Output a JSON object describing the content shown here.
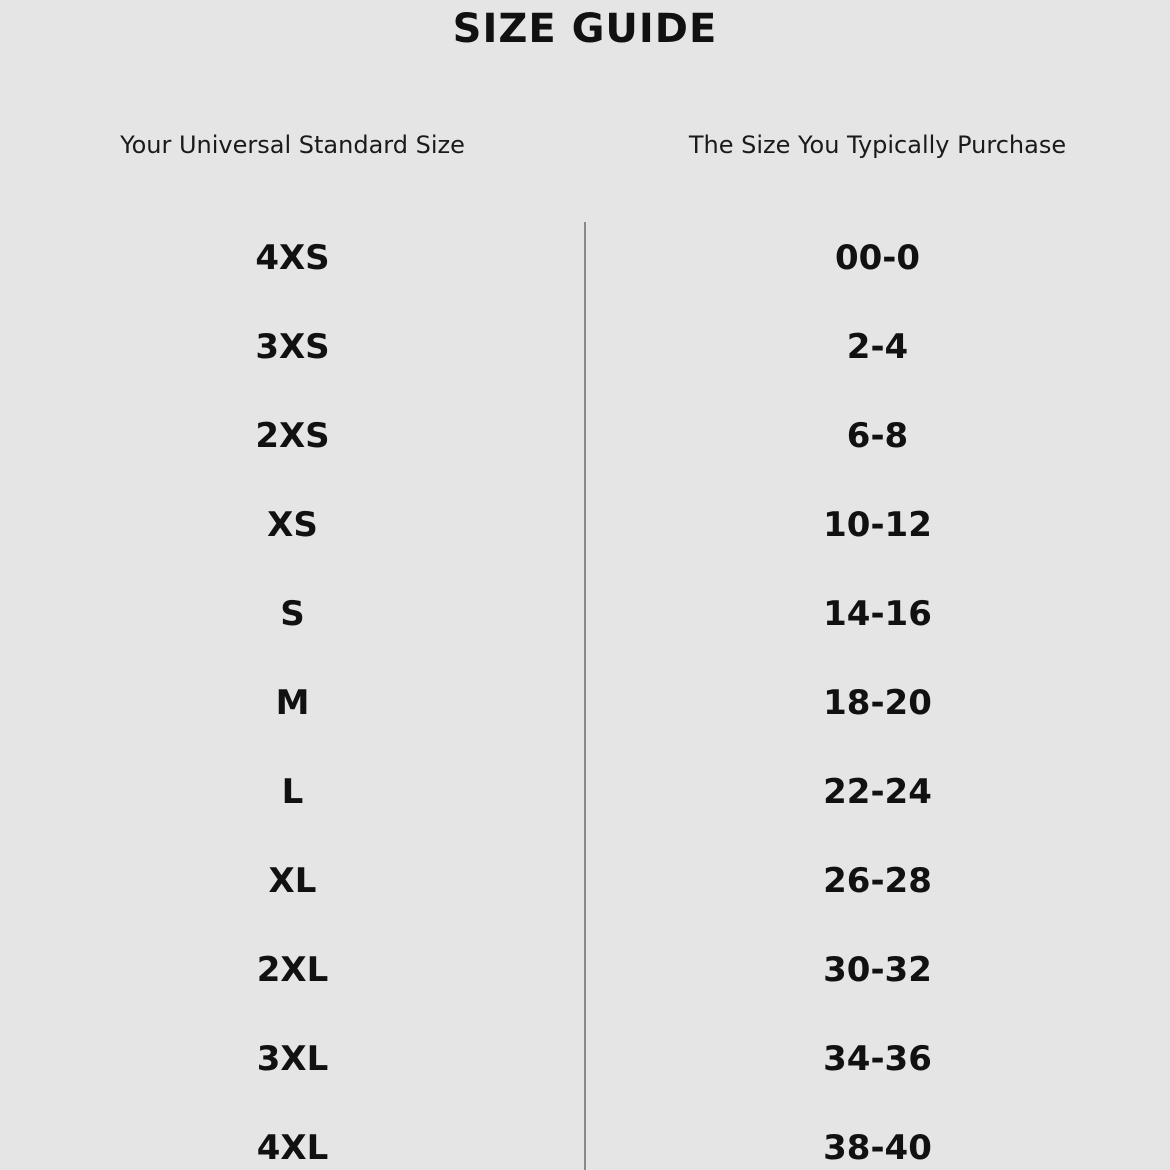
{
  "title": "SIZE GUIDE",
  "headers": {
    "left": "Your Universal Standard Size",
    "right": "The Size You Typically Purchase"
  },
  "rows": [
    {
      "us": "4XS",
      "typical": "00-0"
    },
    {
      "us": "3XS",
      "typical": "2-4"
    },
    {
      "us": "2XS",
      "typical": "6-8"
    },
    {
      "us": "XS",
      "typical": "10-12"
    },
    {
      "us": "S",
      "typical": "14-16"
    },
    {
      "us": "M",
      "typical": "18-20"
    },
    {
      "us": "L",
      "typical": "22-24"
    },
    {
      "us": "XL",
      "typical": "26-28"
    },
    {
      "us": "2XL",
      "typical": "30-32"
    },
    {
      "us": "3XL",
      "typical": "34-36"
    },
    {
      "us": "4XL",
      "typical": "38-40"
    }
  ]
}
